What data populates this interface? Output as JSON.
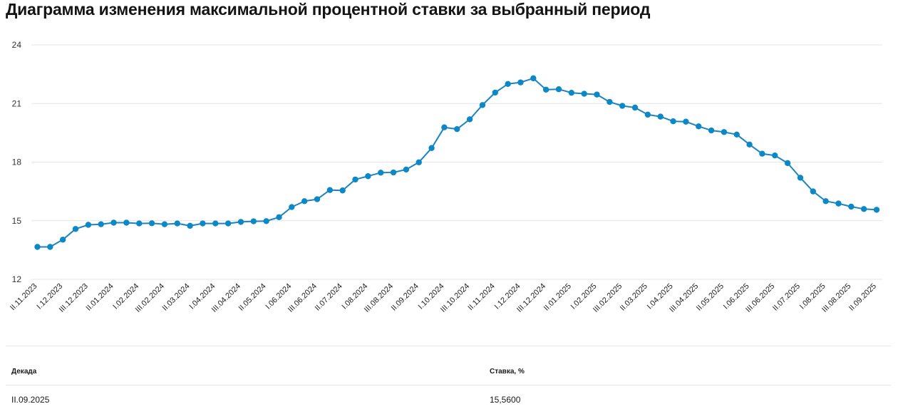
{
  "title": "Диаграмма изменения максимальной процентной ставки за выбранный период",
  "colors": {
    "line": "#1a84c4",
    "point": "#0d88c7",
    "grid": "#e6e6e6"
  },
  "chart_data": {
    "type": "line",
    "title": "Диаграмма изменения максимальной процентной ставки за выбранный период",
    "xlabel": "",
    "ylabel": "",
    "ylim": [
      12,
      24
    ],
    "yticks": [
      12,
      15,
      18,
      21,
      24
    ],
    "grid": true,
    "legend": "none",
    "x_tick_labels": [
      "II.11.2023",
      "I.12.2023",
      "III.12.2023",
      "II.01.2024",
      "I.02.2024",
      "III.02.2024",
      "II.03.2024",
      "I.04.2024",
      "III.04.2024",
      "II.05.2024",
      "I.06.2024",
      "III.06.2024",
      "II.07.2024",
      "I.08.2024",
      "III.08.2024",
      "II.09.2024",
      "I.10.2024",
      "III.10.2024",
      "II.11.2024",
      "I.12.2024",
      "III.12.2024",
      "II.01.2025",
      "I.02.2025",
      "III.02.2025",
      "II.03.2025",
      "I.04.2025",
      "III.04.2025",
      "II.05.2025",
      "I.06.2025",
      "III.06.2025",
      "II.07.2025",
      "I.08.2025",
      "III.08.2025",
      "II.09.2025"
    ],
    "series": [
      {
        "values": [
          13.66,
          13.66,
          14.03,
          14.58,
          14.79,
          14.82,
          14.9,
          14.9,
          14.86,
          14.87,
          14.82,
          14.86,
          14.74,
          14.86,
          14.86,
          14.86,
          14.94,
          14.97,
          14.98,
          15.18,
          15.7,
          16.0,
          16.1,
          16.57,
          16.55,
          17.11,
          17.28,
          17.46,
          17.47,
          17.62,
          17.99,
          18.72,
          19.78,
          19.69,
          20.19,
          20.92,
          21.56,
          22.0,
          22.08,
          22.29,
          21.71,
          21.73,
          21.55,
          21.5,
          21.46,
          21.08,
          20.88,
          20.79,
          20.43,
          20.33,
          20.09,
          20.07,
          19.83,
          19.62,
          19.54,
          19.41,
          18.9,
          18.43,
          18.34,
          17.95,
          17.2,
          16.5,
          16.0,
          15.88,
          15.72,
          15.6,
          15.56
        ]
      }
    ]
  },
  "table": {
    "headers": {
      "decade": "Декада",
      "rate": "Ставка, %"
    },
    "rows": [
      {
        "decade": "II.09.2025",
        "rate": "15,5600"
      }
    ]
  }
}
